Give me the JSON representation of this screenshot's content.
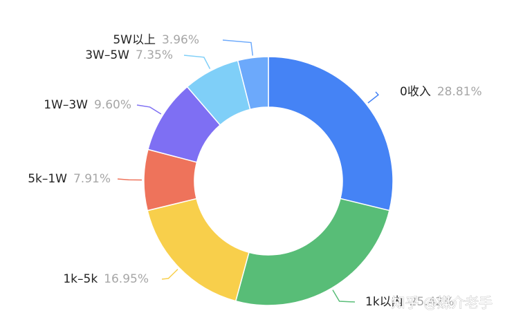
{
  "chart_data": {
    "type": "pie",
    "variant": "donut",
    "slices": [
      {
        "name": "0收入",
        "percent_label": "28.81%",
        "value": 28.81,
        "color": "#4583f5"
      },
      {
        "name": "1k以内",
        "percent_label": "25.42%",
        "value": 25.42,
        "color": "#58bd77"
      },
      {
        "name": "1k–5k",
        "percent_label": "16.95%",
        "value": 16.95,
        "color": "#f8cf4b"
      },
      {
        "name": "5k–1W",
        "percent_label": "7.91%",
        "value": 7.91,
        "color": "#ee735b"
      },
      {
        "name": "1W–3W",
        "percent_label": "9.60%",
        "value": 9.6,
        "color": "#7e6ff3"
      },
      {
        "name": "3W–5W",
        "percent_label": "7.35%",
        "value": 7.35,
        "color": "#7fcff8"
      },
      {
        "name": "5W以上",
        "percent_label": "3.96%",
        "value": 3.96,
        "color": "#6ca9fb"
      }
    ],
    "start_angle_deg": 0,
    "direction": "clockwise"
  },
  "watermark": "知乎 @媒介老手"
}
